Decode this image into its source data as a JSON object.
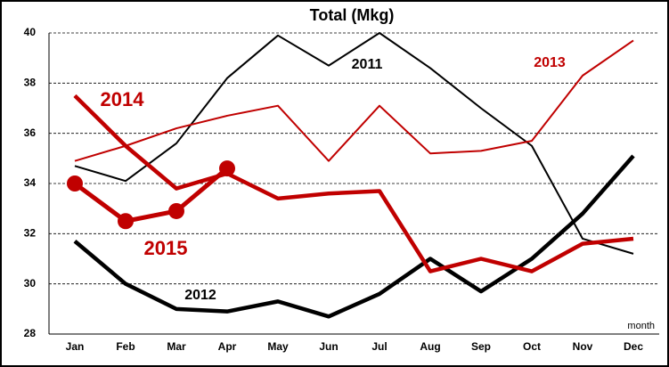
{
  "chart_data": {
    "type": "line",
    "title": "Total (Mkg)",
    "x_label": "month",
    "categories": [
      "Jan",
      "Feb",
      "Mar",
      "Apr",
      "May",
      "Jun",
      "Jul",
      "Aug",
      "Sep",
      "Oct",
      "Nov",
      "Dec"
    ],
    "ylim": [
      28,
      40
    ],
    "yticks": [
      28,
      30,
      32,
      34,
      36,
      38,
      40
    ],
    "grid": true,
    "series": [
      {
        "name": "2011",
        "color": "#000000",
        "values": [
          34.7,
          34.1,
          35.6,
          38.2,
          39.9,
          38.7,
          40.0,
          38.6,
          37.0,
          35.5,
          31.8,
          31.2
        ]
      },
      {
        "name": "2012",
        "color": "#000000",
        "values": [
          31.7,
          30.0,
          29.0,
          28.9,
          29.3,
          28.7,
          29.6,
          31.0,
          29.7,
          31.0,
          32.8,
          35.1
        ]
      },
      {
        "name": "2013",
        "color": "#c00000",
        "values": [
          34.9,
          35.5,
          36.2,
          36.7,
          37.1,
          34.9,
          37.1,
          35.2,
          35.3,
          35.7,
          38.3,
          39.7
        ]
      },
      {
        "name": "2014",
        "color": "#c00000",
        "values": [
          37.5,
          35.5,
          33.8,
          34.4,
          33.4,
          33.6,
          33.7,
          30.5,
          31.0,
          30.5,
          31.6,
          31.8
        ]
      },
      {
        "name": "2015",
        "color": "#c00000",
        "values": [
          34.0,
          32.5,
          32.9,
          34.6,
          null,
          null,
          null,
          null,
          null,
          null,
          null,
          null
        ]
      }
    ]
  }
}
